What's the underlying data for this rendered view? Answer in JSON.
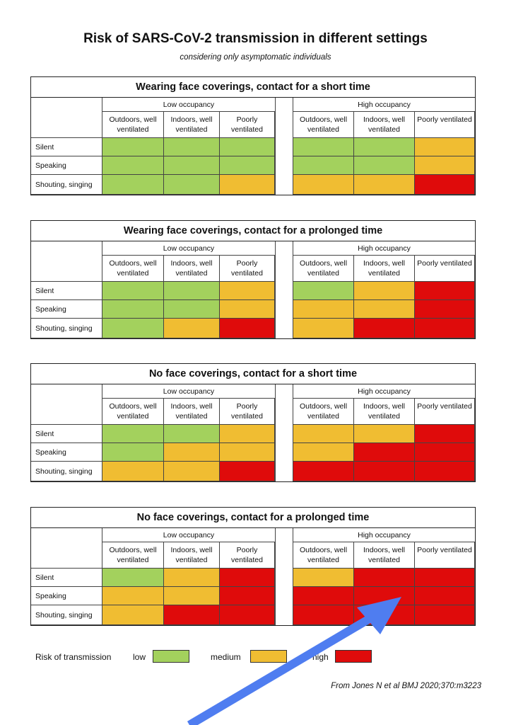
{
  "chart_data": {
    "type": "table",
    "title": "Risk of SARS-CoV-2 transmission in different settings",
    "subtitle": "considering only asymptomatic individuals",
    "occupancy_groups": [
      "Low occupancy",
      "High occupancy"
    ],
    "columns": [
      "Outdoors, well ventilated",
      "Indoors, well ventilated",
      "Poorly ventilated"
    ],
    "rows": [
      "Silent",
      "Speaking",
      "Shouting, singing"
    ],
    "colors": {
      "low": "#a3d15d",
      "medium": "#f0bd32",
      "high": "#df0b0b"
    },
    "panels": [
      {
        "title": "Wearing face coverings, contact for a short time",
        "low_occupancy": [
          [
            "low",
            "low",
            "low"
          ],
          [
            "low",
            "low",
            "low"
          ],
          [
            "low",
            "low",
            "medium"
          ]
        ],
        "high_occupancy": [
          [
            "low",
            "low",
            "medium"
          ],
          [
            "low",
            "low",
            "medium"
          ],
          [
            "medium",
            "medium",
            "high"
          ]
        ]
      },
      {
        "title": "Wearing face coverings, contact for a prolonged time",
        "low_occupancy": [
          [
            "low",
            "low",
            "medium"
          ],
          [
            "low",
            "low",
            "medium"
          ],
          [
            "low",
            "medium",
            "high"
          ]
        ],
        "high_occupancy": [
          [
            "low",
            "medium",
            "high"
          ],
          [
            "medium",
            "medium",
            "high"
          ],
          [
            "medium",
            "high",
            "high"
          ]
        ]
      },
      {
        "title": "No face coverings, contact for a short time",
        "low_occupancy": [
          [
            "low",
            "low",
            "medium"
          ],
          [
            "low",
            "medium",
            "medium"
          ],
          [
            "medium",
            "medium",
            "high"
          ]
        ],
        "high_occupancy": [
          [
            "medium",
            "medium",
            "high"
          ],
          [
            "medium",
            "high",
            "high"
          ],
          [
            "high",
            "high",
            "high"
          ]
        ]
      },
      {
        "title": "No face coverings, contact for a prolonged time",
        "low_occupancy": [
          [
            "low",
            "medium",
            "high"
          ],
          [
            "medium",
            "medium",
            "high"
          ],
          [
            "medium",
            "high",
            "high"
          ]
        ],
        "high_occupancy": [
          [
            "medium",
            "high",
            "high"
          ],
          [
            "high",
            "high",
            "high"
          ],
          [
            "high",
            "high",
            "high"
          ]
        ]
      }
    ],
    "legend": {
      "label": "Risk of transmission",
      "items": [
        {
          "level": "low",
          "label": "low"
        },
        {
          "level": "medium",
          "label": "medium"
        },
        {
          "level": "high",
          "label": "high"
        }
      ]
    },
    "source": "From Jones N et al BMJ 2020;370:m3223"
  },
  "annotation": {
    "arrow_color": "#4f7df0",
    "arrow_icon": "arrow-up-right-icon"
  }
}
